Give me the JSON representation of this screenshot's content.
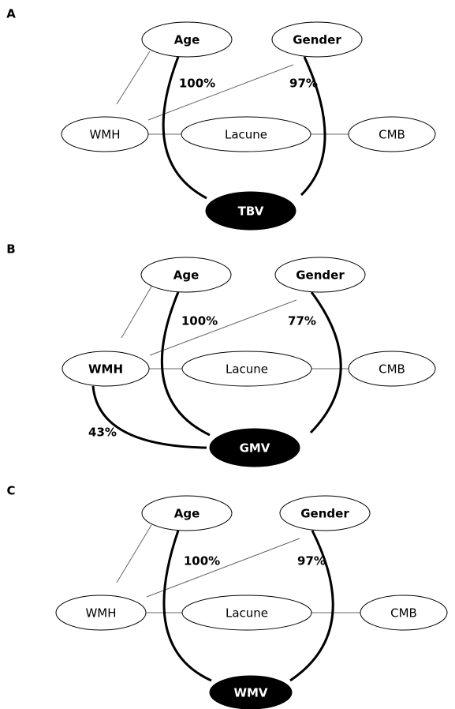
{
  "panels": [
    {
      "label": "A",
      "nodes": [
        {
          "label": "Age",
          "bold": true
        },
        {
          "label": "Gender",
          "bold": true
        },
        {
          "label": "WMH",
          "bold": false
        },
        {
          "label": "Lacune",
          "bold": false
        },
        {
          "label": "CMB",
          "bold": false
        },
        {
          "label": "TBV",
          "bold": true,
          "outcome": true
        }
      ],
      "effects": [
        "100%",
        "97%"
      ]
    },
    {
      "label": "B",
      "nodes": [
        {
          "label": "Age",
          "bold": true
        },
        {
          "label": "Gender",
          "bold": true
        },
        {
          "label": "WMH",
          "bold": true
        },
        {
          "label": "Lacune",
          "bold": false
        },
        {
          "label": "CMB",
          "bold": false
        },
        {
          "label": "GMV",
          "bold": true,
          "outcome": true
        }
      ],
      "effects": [
        "100%",
        "77%",
        "43%"
      ]
    },
    {
      "label": "C",
      "nodes": [
        {
          "label": "Age",
          "bold": true
        },
        {
          "label": "Gender",
          "bold": true
        },
        {
          "label": "WMH",
          "bold": false
        },
        {
          "label": "Lacune",
          "bold": false
        },
        {
          "label": "CMB",
          "bold": false
        },
        {
          "label": "WMV",
          "bold": true,
          "outcome": true
        }
      ],
      "effects": [
        "100%",
        "97%"
      ]
    }
  ]
}
